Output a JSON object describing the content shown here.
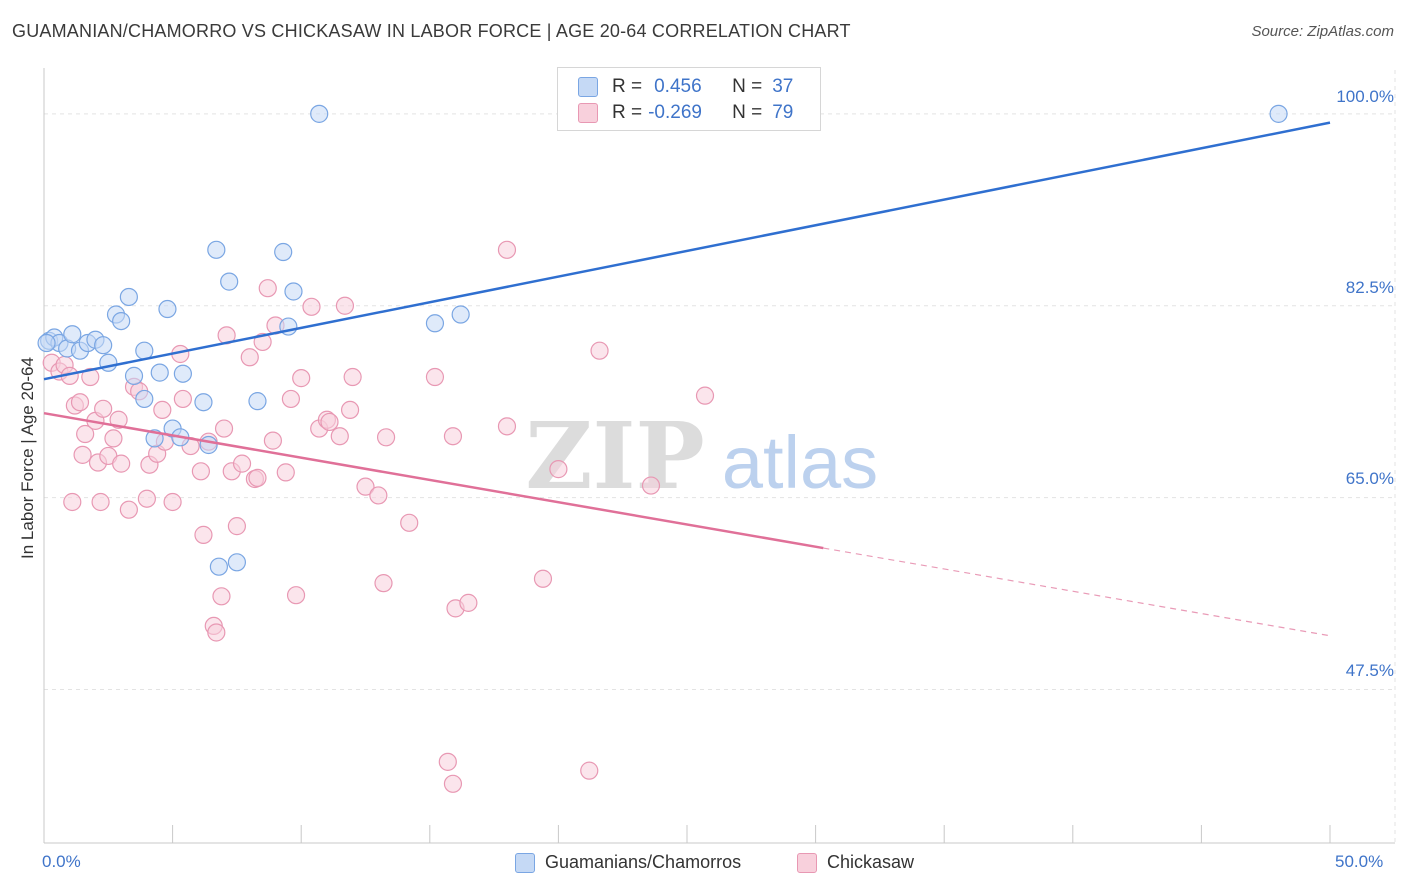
{
  "title": "GUAMANIAN/CHAMORRO VS CHICKASAW IN LABOR FORCE | AGE 20-64 CORRELATION CHART",
  "source": "Source: ZipAtlas.com",
  "watermark": {
    "zip": "ZIP",
    "atlas": "atlas"
  },
  "colors": {
    "blue_fill": "#c5d9f5",
    "blue_stroke": "#7aa6e3",
    "blue_line": "#2f6fd0",
    "pink_fill": "#f8d0dc",
    "pink_stroke": "#e898b3",
    "pink_line": "#e07098",
    "tick_text": "#3f74c9",
    "grid": "#e3e3e3"
  },
  "legend": {
    "rows": [
      {
        "r_label": "R =",
        "r_value": "0.456",
        "n_label": "N =",
        "n_value": "37"
      },
      {
        "r_label": "R =",
        "r_value": "-0.269",
        "n_label": "N =",
        "n_value": "79"
      }
    ]
  },
  "chart_data": {
    "type": "scatter",
    "title": "GUAMANIAN/CHAMORRO VS CHICKASAW IN LABOR FORCE | AGE 20-64 CORRELATION CHART",
    "xlabel": "",
    "ylabel": "In Labor Force | Age 20-64",
    "xlim": [
      0,
      50
    ],
    "ylim": [
      33.5,
      104
    ],
    "x_tick_labels": [
      "0.0%",
      "50.0%"
    ],
    "y_ticks": [
      47.5,
      65.0,
      82.5,
      100.0
    ],
    "y_tick_labels": [
      "47.5%",
      "65.0%",
      "82.5%",
      "100.0%"
    ],
    "grid": true,
    "legend_placement": "top-center",
    "series": [
      {
        "name": "Guamanians/Chamorros",
        "r": 0.456,
        "n": 37,
        "trend": {
          "x0": 0,
          "y0": 75.8,
          "x1": 50,
          "y1": 99.2
        },
        "points": [
          [
            0.2,
            79.3
          ],
          [
            0.4,
            79.6
          ],
          [
            0.6,
            79.1
          ],
          [
            0.9,
            78.6
          ],
          [
            1.1,
            79.9
          ],
          [
            1.4,
            78.4
          ],
          [
            1.7,
            79.1
          ],
          [
            2.0,
            79.4
          ],
          [
            2.3,
            78.9
          ],
          [
            2.5,
            77.3
          ],
          [
            2.8,
            81.7
          ],
          [
            3.0,
            81.1
          ],
          [
            3.3,
            83.3
          ],
          [
            3.5,
            76.1
          ],
          [
            3.9,
            74.0
          ],
          [
            3.9,
            78.4
          ],
          [
            4.3,
            70.4
          ],
          [
            4.5,
            76.4
          ],
          [
            4.8,
            82.2
          ],
          [
            5.0,
            71.3
          ],
          [
            5.3,
            70.5
          ],
          [
            5.4,
            76.3
          ],
          [
            6.2,
            73.7
          ],
          [
            6.4,
            69.8
          ],
          [
            6.7,
            87.6
          ],
          [
            6.8,
            58.7
          ],
          [
            7.2,
            84.7
          ],
          [
            7.5,
            59.1
          ],
          [
            8.3,
            73.8
          ],
          [
            9.3,
            87.4
          ],
          [
            9.5,
            80.6
          ],
          [
            9.7,
            83.8
          ],
          [
            10.7,
            100.0
          ],
          [
            15.2,
            80.9
          ],
          [
            16.2,
            81.7
          ],
          [
            48.0,
            100.0
          ],
          [
            0.1,
            79.1
          ]
        ]
      },
      {
        "name": "Chickasaw",
        "r": -0.269,
        "n": 79,
        "trend": {
          "x0": 0,
          "y0": 72.7,
          "x1": 30.3,
          "y1": 60.4
        },
        "trend_dashed": {
          "x0": 30.3,
          "y0": 60.4,
          "x1": 50,
          "y1": 52.4
        },
        "points": [
          [
            0.3,
            77.3
          ],
          [
            0.6,
            76.5
          ],
          [
            0.8,
            77.1
          ],
          [
            1.0,
            76.1
          ],
          [
            1.1,
            64.6
          ],
          [
            1.2,
            73.4
          ],
          [
            1.4,
            73.7
          ],
          [
            1.5,
            68.9
          ],
          [
            1.6,
            70.8
          ],
          [
            1.8,
            76.0
          ],
          [
            2.0,
            72.0
          ],
          [
            2.1,
            68.2
          ],
          [
            2.2,
            64.6
          ],
          [
            2.3,
            73.1
          ],
          [
            2.5,
            68.8
          ],
          [
            2.7,
            70.4
          ],
          [
            2.9,
            72.1
          ],
          [
            3.0,
            68.1
          ],
          [
            3.3,
            63.9
          ],
          [
            3.5,
            75.1
          ],
          [
            3.7,
            74.7
          ],
          [
            4.0,
            64.9
          ],
          [
            4.1,
            68.0
          ],
          [
            4.4,
            69.0
          ],
          [
            4.6,
            73.0
          ],
          [
            4.7,
            70.1
          ],
          [
            5.0,
            64.6
          ],
          [
            5.3,
            78.1
          ],
          [
            5.4,
            74.0
          ],
          [
            5.7,
            69.7
          ],
          [
            6.1,
            67.4
          ],
          [
            6.2,
            61.6
          ],
          [
            6.4,
            70.1
          ],
          [
            6.6,
            53.3
          ],
          [
            6.7,
            52.7
          ],
          [
            6.9,
            56.0
          ],
          [
            7.0,
            71.3
          ],
          [
            7.1,
            79.8
          ],
          [
            7.3,
            67.4
          ],
          [
            7.5,
            62.4
          ],
          [
            7.7,
            68.1
          ],
          [
            8.0,
            77.8
          ],
          [
            8.2,
            66.7
          ],
          [
            8.3,
            66.8
          ],
          [
            8.5,
            79.2
          ],
          [
            8.7,
            84.1
          ],
          [
            8.9,
            70.2
          ],
          [
            9.0,
            80.7
          ],
          [
            9.4,
            67.3
          ],
          [
            9.6,
            74.0
          ],
          [
            9.8,
            56.1
          ],
          [
            10.0,
            75.9
          ],
          [
            10.4,
            82.4
          ],
          [
            10.7,
            71.3
          ],
          [
            11.0,
            72.1
          ],
          [
            11.1,
            71.9
          ],
          [
            11.5,
            70.6
          ],
          [
            11.7,
            82.5
          ],
          [
            11.9,
            73.0
          ],
          [
            12.0,
            76.0
          ],
          [
            12.5,
            66.0
          ],
          [
            13.0,
            65.2
          ],
          [
            13.2,
            57.2
          ],
          [
            13.3,
            70.5
          ],
          [
            14.2,
            62.7
          ],
          [
            15.2,
            76.0
          ],
          [
            15.7,
            40.9
          ],
          [
            15.9,
            70.6
          ],
          [
            15.9,
            38.9
          ],
          [
            16.0,
            54.9
          ],
          [
            16.5,
            55.4
          ],
          [
            18.0,
            71.5
          ],
          [
            18.0,
            87.6
          ],
          [
            19.4,
            57.6
          ],
          [
            20.0,
            67.6
          ],
          [
            21.2,
            40.1
          ],
          [
            21.6,
            78.4
          ],
          [
            23.6,
            66.1
          ],
          [
            25.7,
            74.3
          ]
        ]
      }
    ]
  },
  "bottom_legend": [
    {
      "label": "Guamanians/Chamorros"
    },
    {
      "label": "Chickasaw"
    }
  ]
}
